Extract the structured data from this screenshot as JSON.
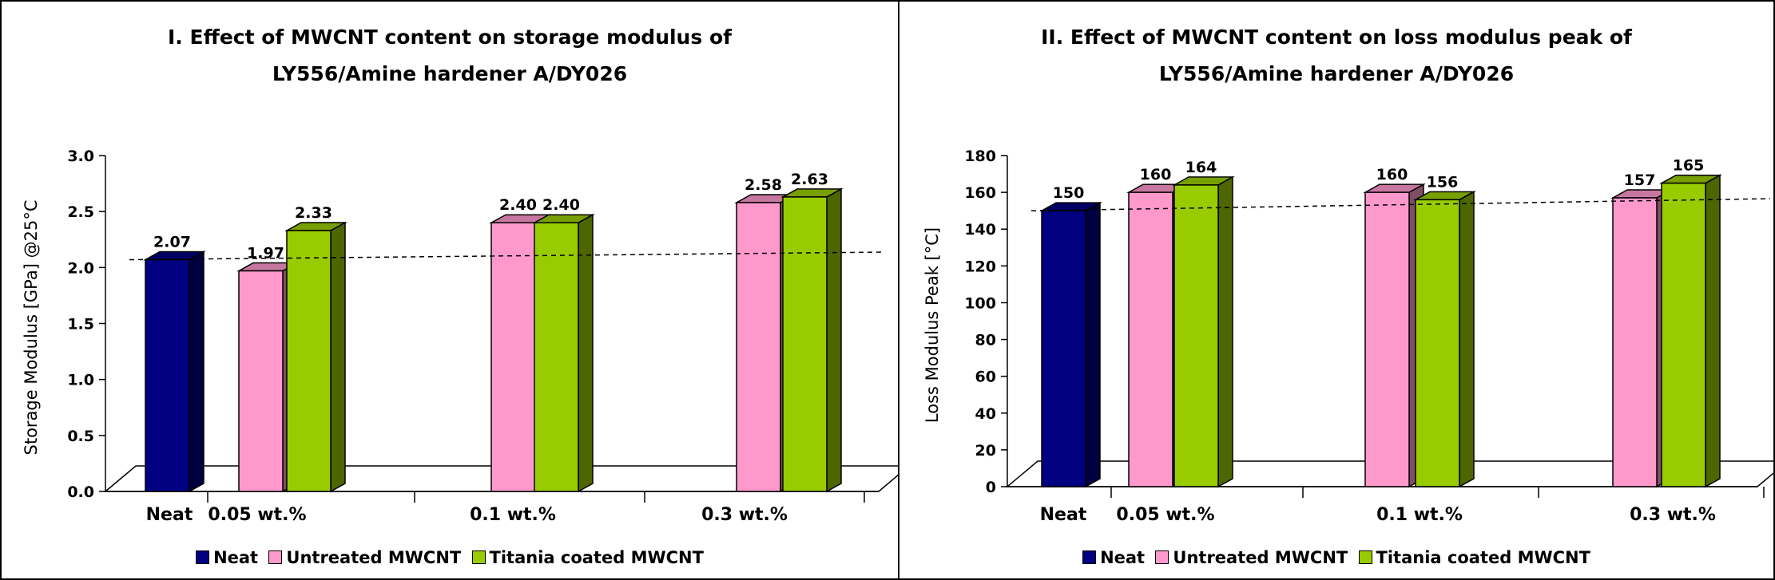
{
  "colors": {
    "neat": "#000080",
    "untreated": "#FF99CC",
    "titania": "#99CC00"
  },
  "legend": [
    {
      "key": "neat",
      "label": "Neat"
    },
    {
      "key": "untreated",
      "label": "Untreated MWCNT"
    },
    {
      "key": "titania",
      "label": "Titania coated MWCNT"
    }
  ],
  "chart_data": [
    {
      "type": "bar",
      "title": [
        "I. Effect of MWCNT content on storage modulus of",
        "LY556/Amine hardener A/DY026"
      ],
      "ylabel": "Storage Modulus [GPa] @25°C",
      "xlabel": "",
      "ylim": [
        0,
        3.0
      ],
      "yticks": [
        "0.0",
        "0.5",
        "1.0",
        "1.5",
        "2.0",
        "2.5",
        "3.0"
      ],
      "categories": [
        "Neat",
        "0.05 wt.%",
        "0.1 wt.%",
        "0.3 wt.%"
      ],
      "reference_line": 2.07,
      "series": [
        {
          "name": "Neat",
          "key": "neat",
          "values": [
            2.07,
            null,
            null,
            null
          ],
          "labels": [
            "2.07",
            null,
            null,
            null
          ]
        },
        {
          "name": "Untreated MWCNT",
          "key": "untreated",
          "values": [
            null,
            1.97,
            2.4,
            2.58
          ],
          "labels": [
            null,
            "1.97",
            "2.40",
            "2.58"
          ]
        },
        {
          "name": "Titania coated MWCNT",
          "key": "titania",
          "values": [
            null,
            2.33,
            2.4,
            2.63
          ],
          "labels": [
            null,
            "2.33",
            "2.40",
            "2.63"
          ]
        }
      ]
    },
    {
      "type": "bar",
      "title": [
        "II. Effect of MWCNT content on loss modulus peak of",
        "LY556/Amine hardener A/DY026"
      ],
      "ylabel": "Loss Modulus Peak [°C]",
      "xlabel": "",
      "ylim": [
        0,
        180
      ],
      "yticks": [
        "0",
        "20",
        "40",
        "60",
        "80",
        "100",
        "120",
        "140",
        "160",
        "180"
      ],
      "categories": [
        "Neat",
        "0.05 wt.%",
        "0.1 wt.%",
        "0.3 wt.%"
      ],
      "reference_line": 150,
      "series": [
        {
          "name": "Neat",
          "key": "neat",
          "values": [
            150,
            null,
            null,
            null
          ],
          "labels": [
            "150",
            null,
            null,
            null
          ]
        },
        {
          "name": "Untreated MWCNT",
          "key": "untreated",
          "values": [
            null,
            160,
            160,
            157
          ],
          "labels": [
            null,
            "160",
            "160",
            "157"
          ]
        },
        {
          "name": "Titania coated MWCNT",
          "key": "titania",
          "values": [
            null,
            164,
            156,
            165
          ],
          "labels": [
            null,
            "164",
            "156",
            "165"
          ]
        }
      ]
    }
  ]
}
